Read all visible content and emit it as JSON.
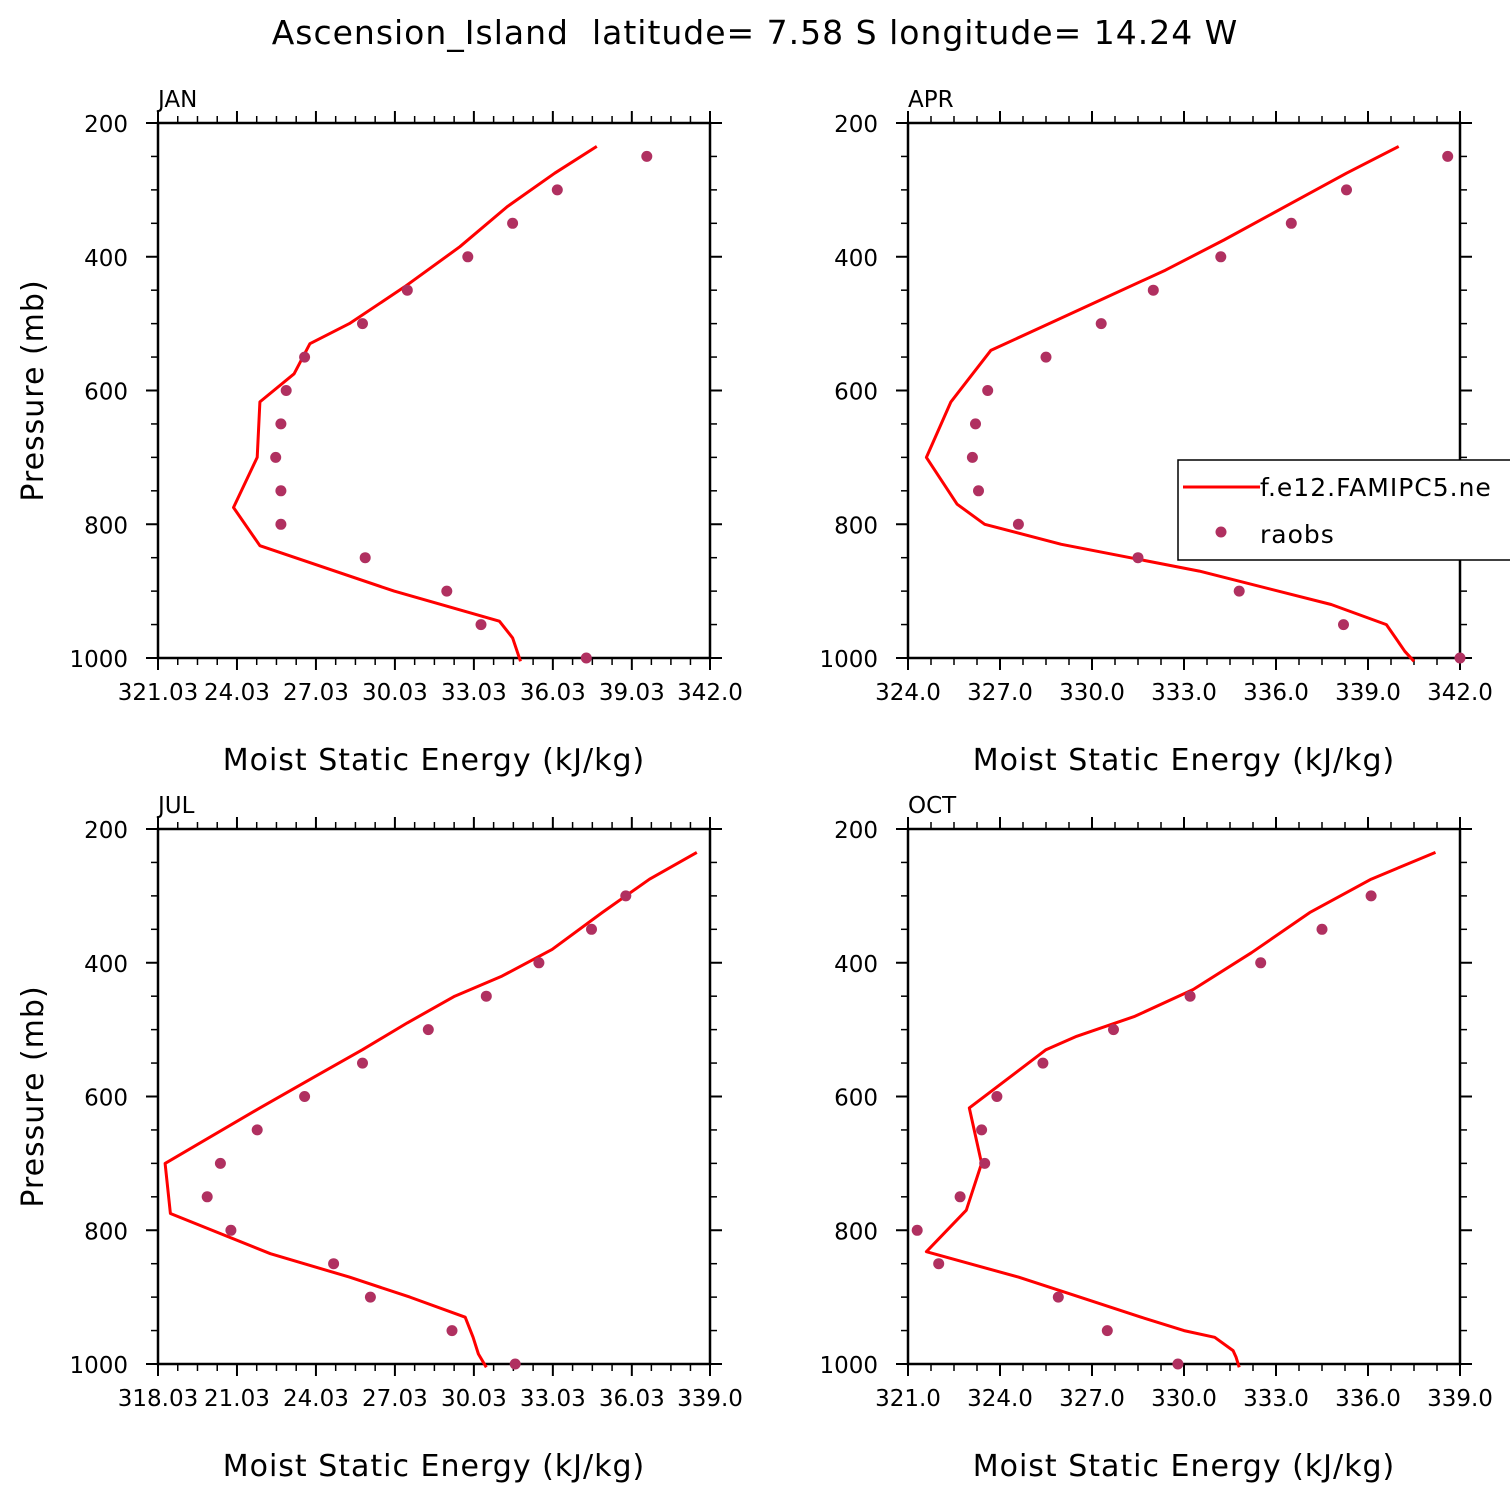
{
  "title": "Ascension_Island  latitude= 7.58 S longitude= 14.24 W",
  "colors": {
    "model": "#ff0000",
    "obs": "#b03060"
  },
  "legend": {
    "model_label": "f.e12.FAMIPC5.ne",
    "obs_label": "raobs",
    "panel": "APR",
    "position": "right"
  },
  "chart_data": [
    {
      "type": "line",
      "panel": "JAN",
      "xlabel": "Moist Static Energy (kJ/kg)",
      "ylabel": "Pressure (mb)",
      "xlim": [
        321.03,
        342.0
      ],
      "xticks": [
        321.03,
        324.03,
        327.03,
        330.03,
        333.03,
        336.03,
        339.03,
        342.0
      ],
      "xtick_labels": [
        "321.03",
        "24.03",
        "27.03",
        "30.03",
        "33.03",
        "36.03",
        "39.03",
        "342.0"
      ],
      "ylim": [
        200,
        1000
      ],
      "yticks": [
        200,
        400,
        600,
        800,
        1000
      ],
      "y_reversed": true,
      "grid": false,
      "series": [
        {
          "name": "f.e12.FAMIPC5.ne",
          "kind": "line",
          "x": [
            337.7,
            336.1,
            334.3,
            332.5,
            330.4,
            328.3,
            326.8,
            326.2,
            324.9,
            324.8,
            323.9,
            324.9,
            330.0,
            334.0,
            334.5,
            334.8
          ],
          "y": [
            235,
            275,
            325,
            385,
            445,
            500,
            530,
            575,
            617,
            700,
            775,
            832,
            900,
            945,
            970,
            1005
          ]
        },
        {
          "name": "raobs",
          "kind": "scatter",
          "x": [
            339.6,
            336.2,
            334.5,
            332.8,
            330.5,
            328.8,
            326.6,
            325.9,
            325.7,
            325.5,
            325.7,
            325.7,
            328.9,
            332.0,
            333.3,
            337.3
          ],
          "y": [
            250,
            300,
            350,
            400,
            450,
            500,
            550,
            600,
            650,
            700,
            750,
            800,
            850,
            900,
            950,
            1000
          ]
        }
      ]
    },
    {
      "type": "line",
      "panel": "APR",
      "xlabel": "Moist Static Energy (kJ/kg)",
      "ylabel": "",
      "xlim": [
        324.0,
        342.0
      ],
      "xticks": [
        324.0,
        327.0,
        330.0,
        333.0,
        336.0,
        339.0,
        342.0
      ],
      "xtick_labels": [
        "324.0",
        "327.0",
        "330.0",
        "333.0",
        "336.0",
        "339.0",
        "342.0"
      ],
      "ylim": [
        200,
        1000
      ],
      "yticks": [
        200,
        400,
        600,
        800,
        1000
      ],
      "y_reversed": true,
      "grid": false,
      "series": [
        {
          "name": "f.e12.FAMIPC5.ne",
          "kind": "line",
          "x": [
            340.0,
            338.3,
            336.3,
            334.3,
            332.4,
            330.5,
            328.6,
            326.7,
            325.4,
            324.6,
            325.6,
            326.5,
            329.0,
            333.5,
            337.8,
            339.6,
            339.9,
            340.2,
            340.5
          ],
          "y": [
            235,
            275,
            325,
            375,
            420,
            460,
            500,
            540,
            617,
            700,
            770,
            800,
            830,
            870,
            920,
            950,
            970,
            990,
            1005
          ]
        },
        {
          "name": "raobs",
          "kind": "scatter",
          "x": [
            341.6,
            338.3,
            336.5,
            334.2,
            332.0,
            330.3,
            328.5,
            326.6,
            326.2,
            326.1,
            326.3,
            327.6,
            331.5,
            334.8,
            338.2,
            342.0
          ],
          "y": [
            250,
            300,
            350,
            400,
            450,
            500,
            550,
            600,
            650,
            700,
            750,
            800,
            850,
            900,
            950,
            1000
          ]
        }
      ]
    },
    {
      "type": "line",
      "panel": "JUL",
      "xlabel": "Moist Static Energy (kJ/kg)",
      "ylabel": "Pressure (mb)",
      "xlim": [
        318.03,
        339.0
      ],
      "xticks": [
        318.03,
        321.03,
        324.03,
        327.03,
        330.03,
        333.03,
        336.03,
        339.0
      ],
      "xtick_labels": [
        "318.03",
        "21.03",
        "24.03",
        "27.03",
        "30.03",
        "33.03",
        "36.03",
        "339.0"
      ],
      "ylim": [
        200,
        1000
      ],
      "yticks": [
        200,
        400,
        600,
        800,
        1000
      ],
      "y_reversed": true,
      "grid": false,
      "series": [
        {
          "name": "f.e12.FAMIPC5.ne",
          "kind": "line",
          "x": [
            338.5,
            336.7,
            334.9,
            333.0,
            331.1,
            329.3,
            327.5,
            325.8,
            324.0,
            321.9,
            318.3,
            318.5,
            322.3,
            325.3,
            327.6,
            329.7,
            330.0,
            330.2,
            330.5
          ],
          "y": [
            235,
            275,
            325,
            380,
            420,
            450,
            490,
            530,
            570,
            617,
            700,
            775,
            835,
            870,
            900,
            930,
            960,
            985,
            1005
          ]
        },
        {
          "name": "raobs",
          "kind": "scatter",
          "x": [
            335.8,
            334.5,
            332.5,
            330.5,
            328.3,
            325.8,
            323.6,
            321.8,
            320.4,
            319.9,
            320.8,
            324.7,
            326.1,
            329.2,
            331.6
          ],
          "y": [
            300,
            350,
            400,
            450,
            500,
            550,
            600,
            650,
            700,
            750,
            800,
            850,
            900,
            950,
            1000
          ]
        }
      ]
    },
    {
      "type": "line",
      "panel": "OCT",
      "xlabel": "Moist Static Energy (kJ/kg)",
      "ylabel": "",
      "xlim": [
        321.0,
        339.0
      ],
      "xticks": [
        321.0,
        324.0,
        327.0,
        330.0,
        333.0,
        336.0,
        339.0
      ],
      "xtick_labels": [
        "321.0",
        "324.0",
        "327.0",
        "330.0",
        "333.0",
        "336.0",
        "339.0"
      ],
      "ylim": [
        200,
        1000
      ],
      "yticks": [
        200,
        400,
        600,
        800,
        1000
      ],
      "y_reversed": true,
      "grid": false,
      "series": [
        {
          "name": "f.e12.FAMIPC5.ne",
          "kind": "line",
          "x": [
            338.2,
            336.1,
            334.1,
            332.2,
            330.3,
            328.4,
            326.5,
            325.5,
            323.0,
            323.4,
            322.9,
            321.6,
            324.6,
            326.6,
            328.6,
            330.0,
            331.0,
            331.6,
            331.7,
            331.8
          ],
          "y": [
            235,
            275,
            325,
            385,
            440,
            480,
            510,
            530,
            617,
            700,
            770,
            832,
            870,
            900,
            930,
            950,
            960,
            980,
            990,
            1005
          ]
        },
        {
          "name": "raobs",
          "kind": "scatter",
          "x": [
            336.1,
            334.5,
            332.5,
            330.2,
            327.7,
            325.4,
            323.9,
            323.4,
            323.5,
            322.7,
            321.3,
            322.0,
            325.9,
            327.5,
            329.8
          ],
          "y": [
            300,
            350,
            400,
            450,
            500,
            550,
            600,
            650,
            700,
            750,
            800,
            850,
            900,
            950,
            1000
          ]
        }
      ]
    }
  ]
}
